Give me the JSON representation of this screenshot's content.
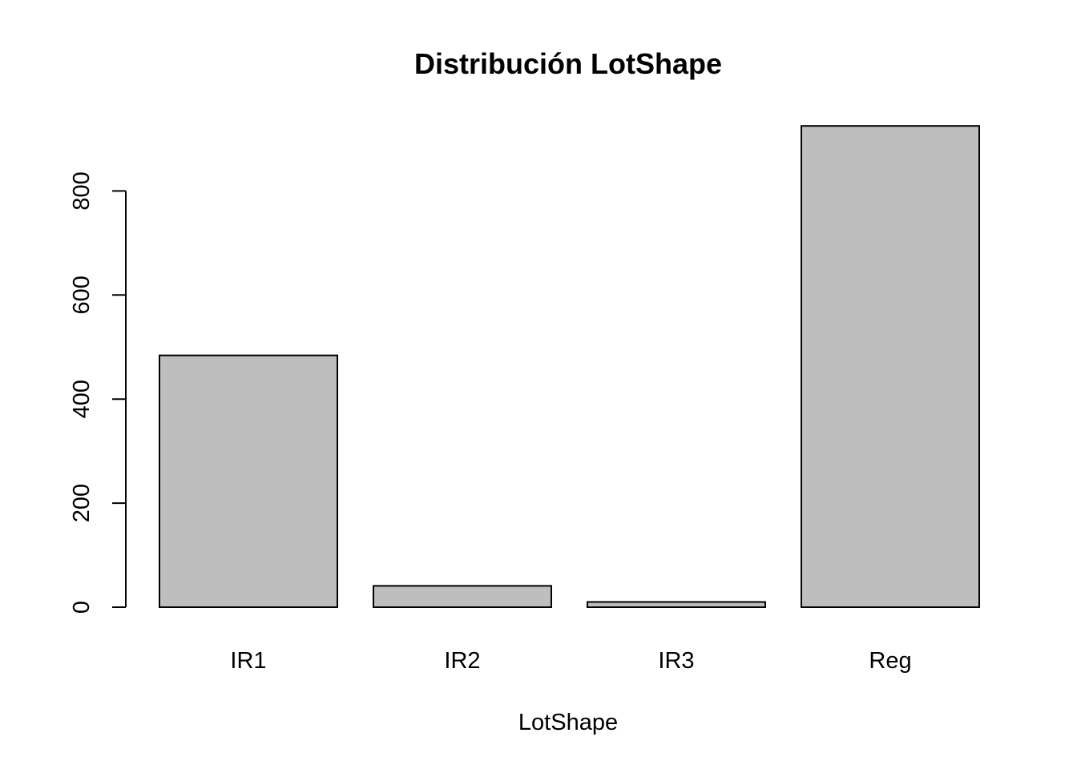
{
  "chart_data": {
    "type": "bar",
    "title": "Distribución LotShape",
    "xlabel": "LotShape",
    "ylabel": "",
    "categories": [
      "IR1",
      "IR2",
      "IR3",
      "Reg"
    ],
    "values": [
      484,
      41,
      10,
      925
    ],
    "ylim": [
      0,
      925
    ],
    "yticks": [
      0,
      200,
      400,
      600,
      800
    ],
    "ytick_labels": [
      "0",
      "200",
      "400",
      "600",
      "800"
    ],
    "grid": false,
    "bar_fill": "#bebebe",
    "bar_stroke": "#000000"
  }
}
